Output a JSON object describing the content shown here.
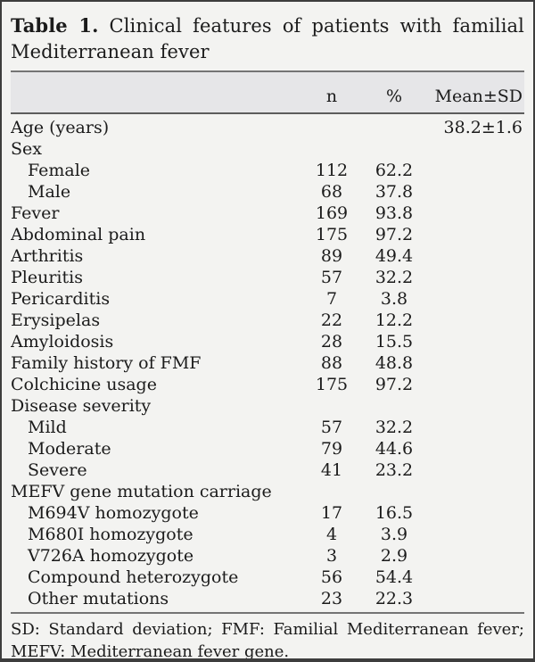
{
  "table": {
    "title_bold": "Table 1.",
    "title_line1_rest": "Clinical features of patients with familial",
    "title_line2": "Mediterranean fever",
    "columns": {
      "label": "",
      "n": "n",
      "pct": "%",
      "mean": "Mean±SD"
    },
    "rows": [
      {
        "label": "Age (years)",
        "n": "",
        "pct": "",
        "mean": "38.2±1.6",
        "indent": false
      },
      {
        "label": "Sex",
        "n": "",
        "pct": "",
        "mean": "",
        "indent": false
      },
      {
        "label": "Female",
        "n": "112",
        "pct": "62.2",
        "mean": "",
        "indent": true
      },
      {
        "label": "Male",
        "n": "68",
        "pct": "37.8",
        "mean": "",
        "indent": true
      },
      {
        "label": "Fever",
        "n": "169",
        "pct": "93.8",
        "mean": "",
        "indent": false
      },
      {
        "label": "Abdominal pain",
        "n": "175",
        "pct": "97.2",
        "mean": "",
        "indent": false
      },
      {
        "label": "Arthritis",
        "n": "89",
        "pct": "49.4",
        "mean": "",
        "indent": false
      },
      {
        "label": "Pleuritis",
        "n": "57",
        "pct": "32.2",
        "mean": "",
        "indent": false
      },
      {
        "label": "Pericarditis",
        "n": "7",
        "pct": "3.8",
        "mean": "",
        "indent": false
      },
      {
        "label": "Erysipelas",
        "n": "22",
        "pct": "12.2",
        "mean": "",
        "indent": false
      },
      {
        "label": "Amyloidosis",
        "n": "28",
        "pct": "15.5",
        "mean": "",
        "indent": false
      },
      {
        "label": "Family history of FMF",
        "n": "88",
        "pct": "48.8",
        "mean": "",
        "indent": false
      },
      {
        "label": "Colchicine usage",
        "n": "175",
        "pct": "97.2",
        "mean": "",
        "indent": false
      },
      {
        "label": "Disease severity",
        "n": "",
        "pct": "",
        "mean": "",
        "indent": false
      },
      {
        "label": "Mild",
        "n": "57",
        "pct": "32.2",
        "mean": "",
        "indent": true
      },
      {
        "label": "Moderate",
        "n": "79",
        "pct": "44.6",
        "mean": "",
        "indent": true
      },
      {
        "label": "Severe",
        "n": "41",
        "pct": "23.2",
        "mean": "",
        "indent": true
      },
      {
        "label": "MEFV gene mutation carriage",
        "n": "",
        "pct": "",
        "mean": "",
        "indent": false
      },
      {
        "label": "M694V homozygote",
        "n": "17",
        "pct": "16.5",
        "mean": "",
        "indent": true
      },
      {
        "label": "M680I homozygote",
        "n": "4",
        "pct": "3.9",
        "mean": "",
        "indent": true
      },
      {
        "label": "V726A homozygote",
        "n": "3",
        "pct": "2.9",
        "mean": "",
        "indent": true
      },
      {
        "label": "Compound heterozygote",
        "n": "56",
        "pct": "54.4",
        "mean": "",
        "indent": true
      },
      {
        "label": "Other mutations",
        "n": "23",
        "pct": "22.3",
        "mean": "",
        "indent": true
      }
    ],
    "footnote_line1": "SD: Standard deviation; FMF: Familial Mediterranean fever;",
    "footnote_line2": "MEFV: Mediterranean fever gene."
  }
}
